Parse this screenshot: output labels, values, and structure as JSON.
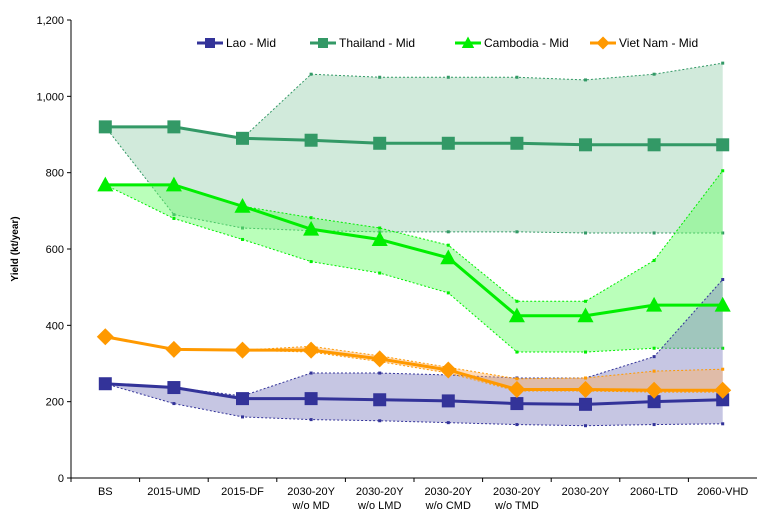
{
  "chart_data": {
    "type": "line",
    "y_label": "Yield (kt/year)",
    "categories": [
      "BS",
      "2015-UMD",
      "2015-DF",
      "2030-20Y\nw/o MD",
      "2030-20Y\nw/o LMD",
      "2030-20Y\nw/o CMD",
      "2030-20Y\nw/o TMD",
      "2030-20Y",
      "2060-LTD",
      "2060-VHD"
    ],
    "ylim": [
      0,
      1200
    ],
    "yticks": [
      0,
      200,
      400,
      600,
      800,
      {
        "value": 1000,
        "label": "1,000"
      },
      {
        "value": 1200,
        "label": "1,200"
      }
    ],
    "legend": "top",
    "series": [
      {
        "name": "Lao - Mid",
        "color": "#333399",
        "band_color": "#8080c0",
        "marker": "square",
        "values": [
          247,
          237,
          208,
          208,
          205,
          202,
          195,
          193,
          200,
          205
        ],
        "high": [
          247,
          237,
          215,
          275,
          275,
          270,
          262,
          262,
          318,
          520
        ],
        "low": [
          247,
          195,
          160,
          153,
          150,
          145,
          140,
          137,
          140,
          142
        ]
      },
      {
        "name": "Thailand - Mid",
        "color": "#339966",
        "band_color": "#99d1b0",
        "marker": "square",
        "values": [
          920,
          920,
          890,
          885,
          877,
          877,
          877,
          873,
          873,
          873
        ],
        "high": [
          920,
          920,
          890,
          1058,
          1050,
          1050,
          1050,
          1043,
          1058,
          1087
        ],
        "low": [
          920,
          690,
          655,
          648,
          645,
          645,
          645,
          642,
          642,
          642
        ]
      },
      {
        "name": "Cambodia - Mid",
        "color": "#00ee00",
        "band_color": "#66ff66",
        "marker": "triangle",
        "values": [
          768,
          768,
          712,
          652,
          625,
          577,
          425,
          425,
          453,
          453
        ],
        "high": [
          768,
          768,
          712,
          682,
          655,
          610,
          463,
          463,
          570,
          805
        ],
        "low": [
          768,
          680,
          625,
          567,
          537,
          485,
          330,
          330,
          340,
          340
        ]
      },
      {
        "name": "Viet Nam - Mid",
        "color": "#ff9900",
        "band_color": "#ffb060",
        "marker": "diamond",
        "values": [
          370,
          337,
          335,
          335,
          312,
          283,
          232,
          232,
          230,
          230
        ],
        "high": [
          370,
          337,
          335,
          345,
          320,
          290,
          260,
          262,
          280,
          285
        ],
        "low": [
          370,
          337,
          335,
          330,
          305,
          275,
          228,
          228,
          225,
          225
        ]
      }
    ]
  }
}
